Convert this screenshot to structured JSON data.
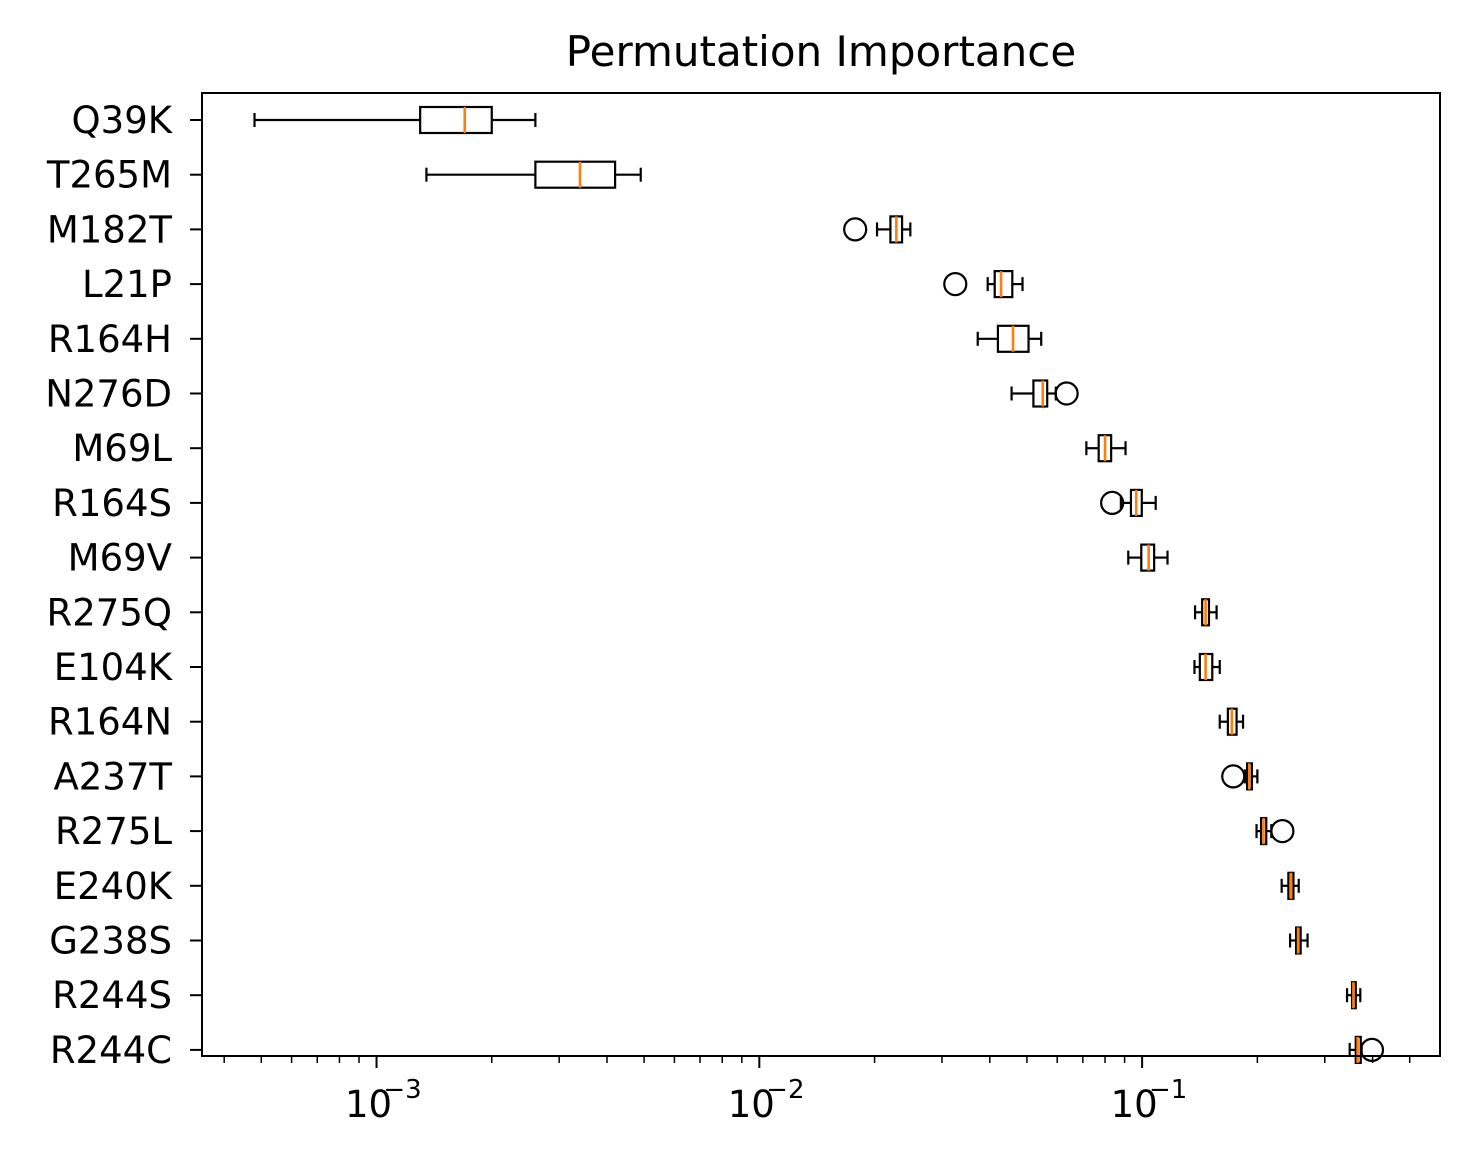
{
  "chart_data": {
    "type": "boxplot",
    "orientation": "horizontal",
    "title": "Permutation Importance",
    "xscale": "log",
    "xlim": [
      0.00035,
      0.6
    ],
    "x_tick_labels": [
      {
        "value": 0.001,
        "base": "10",
        "exp": "−3"
      },
      {
        "value": 0.01,
        "base": "10",
        "exp": "−2"
      },
      {
        "value": 0.1,
        "base": "10",
        "exp": "−1"
      }
    ],
    "box_color": "#000000",
    "median_color": "#ff7f0e",
    "categories": [
      "Q39K",
      "T265M",
      "M182T",
      "L21P",
      "R164H",
      "N276D",
      "M69L",
      "R164S",
      "M69V",
      "R275Q",
      "E104K",
      "R164N",
      "A237T",
      "R275L",
      "E240K",
      "G238S",
      "R244S",
      "R244C"
    ],
    "boxes": [
      {
        "label": "Q39K",
        "whislo": 0.00048,
        "q1": 0.0013,
        "med": 0.0017,
        "q3": 0.002,
        "whishi": 0.0026,
        "fliers": []
      },
      {
        "label": "T265M",
        "whislo": 0.00135,
        "q1": 0.0026,
        "med": 0.0034,
        "q3": 0.0042,
        "whishi": 0.0049,
        "fliers": []
      },
      {
        "label": "M182T",
        "whislo": 0.0203,
        "q1": 0.022,
        "med": 0.0228,
        "q3": 0.0236,
        "whishi": 0.0248,
        "fliers": [
          0.0178
        ]
      },
      {
        "label": "L21P",
        "whislo": 0.0395,
        "q1": 0.0412,
        "med": 0.0428,
        "q3": 0.0458,
        "whishi": 0.0487,
        "fliers": [
          0.0325
        ]
      },
      {
        "label": "R164H",
        "whislo": 0.0372,
        "q1": 0.042,
        "med": 0.046,
        "q3": 0.0505,
        "whishi": 0.0545,
        "fliers": []
      },
      {
        "label": "N276D",
        "whislo": 0.0456,
        "q1": 0.052,
        "med": 0.055,
        "q3": 0.0565,
        "whishi": 0.0595,
        "fliers": [
          0.0635
        ]
      },
      {
        "label": "M69L",
        "whislo": 0.0715,
        "q1": 0.077,
        "med": 0.08,
        "q3": 0.083,
        "whishi": 0.0905,
        "fliers": []
      },
      {
        "label": "R164S",
        "whislo": 0.088,
        "q1": 0.0935,
        "med": 0.0965,
        "q3": 0.0998,
        "whishi": 0.1085,
        "fliers": [
          0.0835
        ]
      },
      {
        "label": "M69V",
        "whislo": 0.092,
        "q1": 0.0995,
        "med": 0.104,
        "q3": 0.1075,
        "whishi": 0.1165,
        "fliers": []
      },
      {
        "label": "R275Q",
        "whislo": 0.1375,
        "q1": 0.1435,
        "med": 0.1465,
        "q3": 0.1495,
        "whishi": 0.1565,
        "fliers": []
      },
      {
        "label": "E104K",
        "whislo": 0.137,
        "q1": 0.1415,
        "med": 0.1465,
        "q3": 0.1525,
        "whishi": 0.1595,
        "fliers": []
      },
      {
        "label": "R164N",
        "whislo": 0.1595,
        "q1": 0.1675,
        "med": 0.1715,
        "q3": 0.1765,
        "whishi": 0.1835,
        "fliers": []
      },
      {
        "label": "A237T",
        "whislo": 0.1855,
        "q1": 0.188,
        "med": 0.1905,
        "q3": 0.1935,
        "whishi": 0.2,
        "fliers": [
          0.173
        ]
      },
      {
        "label": "R275L",
        "whislo": 0.199,
        "q1": 0.2045,
        "med": 0.2075,
        "q3": 0.211,
        "whishi": 0.2175,
        "fliers": [
          0.2325
        ]
      },
      {
        "label": "E240K",
        "whislo": 0.2315,
        "q1": 0.241,
        "med": 0.245,
        "q3": 0.2485,
        "whishi": 0.2565,
        "fliers": []
      },
      {
        "label": "G238S",
        "whislo": 0.2435,
        "q1": 0.2525,
        "med": 0.2555,
        "q3": 0.2595,
        "whishi": 0.2705,
        "fliers": []
      },
      {
        "label": "R244S",
        "whislo": 0.343,
        "q1": 0.3535,
        "med": 0.3565,
        "q3": 0.3615,
        "whishi": 0.3715,
        "fliers": []
      },
      {
        "label": "R244C",
        "whislo": 0.3485,
        "q1": 0.3615,
        "med": 0.3655,
        "q3": 0.3725,
        "whishi": 0.3745,
        "fliers": [
          0.3985
        ]
      }
    ]
  }
}
